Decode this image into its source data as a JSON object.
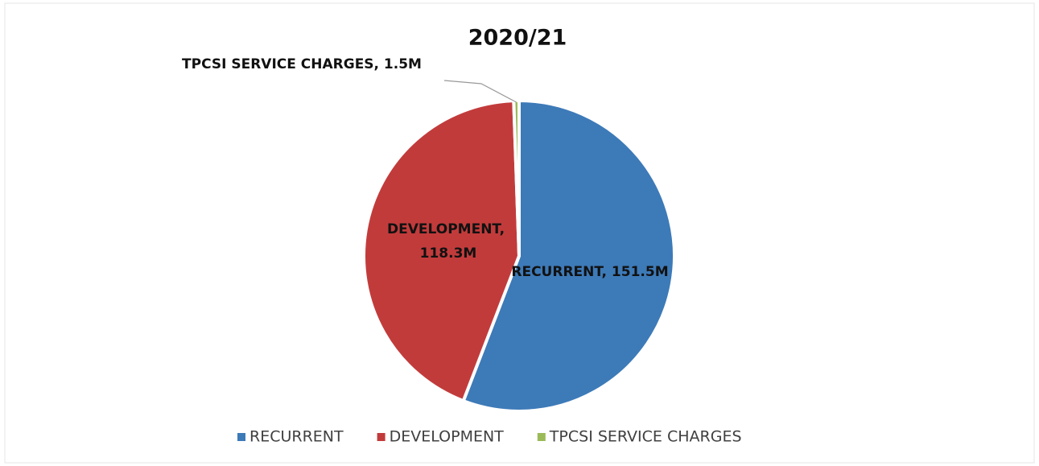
{
  "chart_data": {
    "type": "pie",
    "title": "2020/21",
    "categories": [
      "RECURRENT",
      "DEVELOPMENT",
      "TPCSI SERVICE CHARGES"
    ],
    "values": [
      151.5,
      118.3,
      1.5
    ],
    "value_labels": [
      "RECURRENT, 151.5M",
      "DEVELOPMENT, 118.3M",
      "TPCSI SERVICE CHARGES, 1.5M"
    ],
    "colors": [
      "#3d7ab8",
      "#c23b3b",
      "#9bbb59"
    ],
    "legend": "bottom"
  }
}
